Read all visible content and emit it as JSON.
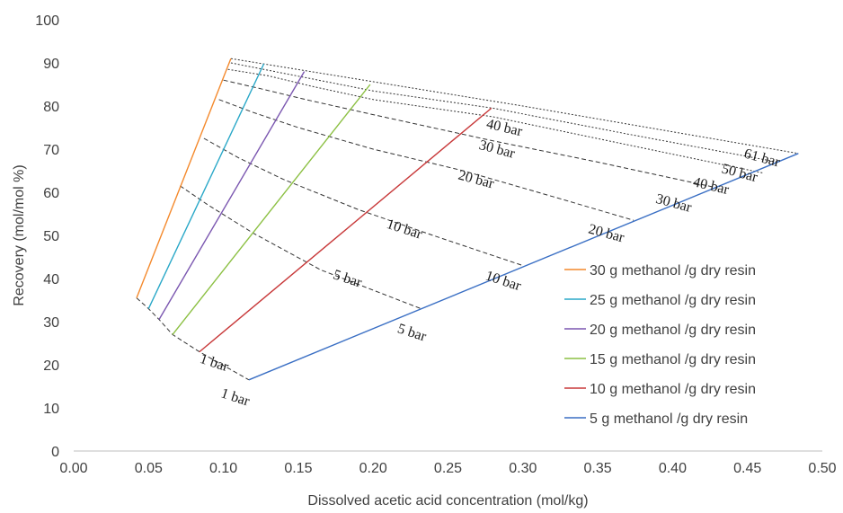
{
  "chart_data": {
    "type": "line",
    "xlabel": "Dissolved acetic acid concentration (mol/kg)",
    "ylabel": "Recovery (mol/mol %)",
    "xlim": [
      0,
      0.5
    ],
    "ylim": [
      0,
      100
    ],
    "x_ticks": [
      "0.00",
      "0.05",
      "0.10",
      "0.15",
      "0.20",
      "0.25",
      "0.30",
      "0.35",
      "0.40",
      "0.45",
      "0.50"
    ],
    "y_ticks": [
      "0",
      "10",
      "20",
      "30",
      "40",
      "50",
      "60",
      "70",
      "80",
      "90",
      "100"
    ],
    "grid": false,
    "legend_position": "right",
    "series": [
      {
        "name": "30 g methanol /g dry resin",
        "color": "#f4892c",
        "points": [
          [
            0.042,
            35.5
          ],
          [
            0.105,
            91
          ]
        ]
      },
      {
        "name": "25 g methanol /g dry resin",
        "color": "#2aa8c8",
        "points": [
          [
            0.05,
            33
          ],
          [
            0.127,
            89.8
          ]
        ]
      },
      {
        "name": "20 g methanol /g dry resin",
        "color": "#7b57b0",
        "points": [
          [
            0.057,
            30.5
          ],
          [
            0.154,
            88
          ]
        ]
      },
      {
        "name": "15 g methanol /g dry resin",
        "color": "#8cc043",
        "points": [
          [
            0.066,
            27
          ],
          [
            0.198,
            85
          ]
        ]
      },
      {
        "name": "10 g methanol /g dry resin",
        "color": "#c8393a",
        "points": [
          [
            0.084,
            23
          ],
          [
            0.279,
            79.5
          ]
        ]
      },
      {
        "name": "5 g methanol /g dry resin",
        "color": "#3a6fc4",
        "points": [
          [
            0.117,
            16.5
          ],
          [
            0.484,
            69
          ]
        ]
      }
    ],
    "isobars": [
      {
        "label": "1 bar",
        "style": "dashed",
        "points": [
          [
            0.042,
            35.5
          ],
          [
            0.05,
            33
          ],
          [
            0.057,
            30.5
          ],
          [
            0.066,
            27
          ],
          [
            0.084,
            23
          ],
          [
            0.117,
            16.5
          ]
        ]
      },
      {
        "label": "5 bar",
        "style": "dashed",
        "points": [
          [
            0.071,
            61.5
          ],
          [
            0.09,
            57
          ],
          [
            0.12,
            50.5
          ],
          [
            0.165,
            42
          ],
          [
            0.232,
            33
          ]
        ]
      },
      {
        "label": "10 bar",
        "style": "dashed",
        "points": [
          [
            0.087,
            72.5
          ],
          [
            0.11,
            68
          ],
          [
            0.14,
            63
          ],
          [
            0.19,
            56
          ],
          [
            0.24,
            50
          ],
          [
            0.3,
            43
          ]
        ]
      },
      {
        "label": "20 bar",
        "style": "dashed",
        "points": [
          [
            0.097,
            81.5
          ],
          [
            0.12,
            78.5
          ],
          [
            0.15,
            75
          ],
          [
            0.2,
            70
          ],
          [
            0.26,
            65
          ],
          [
            0.32,
            59
          ],
          [
            0.374,
            53.5
          ]
        ]
      },
      {
        "label": "30 bar",
        "style": "dashed",
        "points": [
          [
            0.1,
            86
          ],
          [
            0.125,
            84
          ],
          [
            0.155,
            81.5
          ],
          [
            0.2,
            78
          ],
          [
            0.279,
            72
          ],
          [
            0.35,
            67
          ],
          [
            0.43,
            61
          ]
        ]
      },
      {
        "label": "40 bar",
        "style": "dotted",
        "points": [
          [
            0.103,
            88.5
          ],
          [
            0.13,
            87
          ],
          [
            0.16,
            84.5
          ],
          [
            0.2,
            81.5
          ],
          [
            0.28,
            77.5
          ],
          [
            0.46,
            64.5
          ]
        ]
      },
      {
        "label": "50 bar",
        "style": "dotted",
        "points": [
          [
            0.105,
            90
          ],
          [
            0.2,
            83.5
          ],
          [
            0.28,
            79.5
          ],
          [
            0.37,
            73.5
          ],
          [
            0.47,
            67
          ]
        ]
      },
      {
        "label": "61 bar",
        "style": "dotted",
        "points": [
          [
            0.105,
            91
          ],
          [
            0.3,
            80
          ],
          [
            0.484,
            69
          ]
        ]
      }
    ],
    "annotations": [
      {
        "text": "1 bar",
        "x": 0.093,
        "y": 19.5,
        "rotate": 18
      },
      {
        "text": "1 bar",
        "x": 0.107,
        "y": 11.5,
        "rotate": 18
      },
      {
        "text": "5 bar",
        "x": 0.182,
        "y": 39,
        "rotate": 18
      },
      {
        "text": "5 bar",
        "x": 0.225,
        "y": 26.5,
        "rotate": 18
      },
      {
        "text": "10 bar",
        "x": 0.22,
        "y": 50.5,
        "rotate": 18
      },
      {
        "text": "10 bar",
        "x": 0.286,
        "y": 38.5,
        "rotate": 18
      },
      {
        "text": "20 bar",
        "x": 0.268,
        "y": 62,
        "rotate": 15
      },
      {
        "text": "20 bar",
        "x": 0.355,
        "y": 49.5,
        "rotate": 15
      },
      {
        "text": "30 bar",
        "x": 0.282,
        "y": 69,
        "rotate": 15
      },
      {
        "text": "30 bar",
        "x": 0.4,
        "y": 56.5,
        "rotate": 15
      },
      {
        "text": "40 bar",
        "x": 0.287,
        "y": 74,
        "rotate": 13
      },
      {
        "text": "40 bar",
        "x": 0.425,
        "y": 60.5,
        "rotate": 13
      },
      {
        "text": "50 bar",
        "x": 0.444,
        "y": 63.5,
        "rotate": 15
      },
      {
        "text": "61 bar",
        "x": 0.459,
        "y": 67,
        "rotate": 15
      }
    ]
  }
}
